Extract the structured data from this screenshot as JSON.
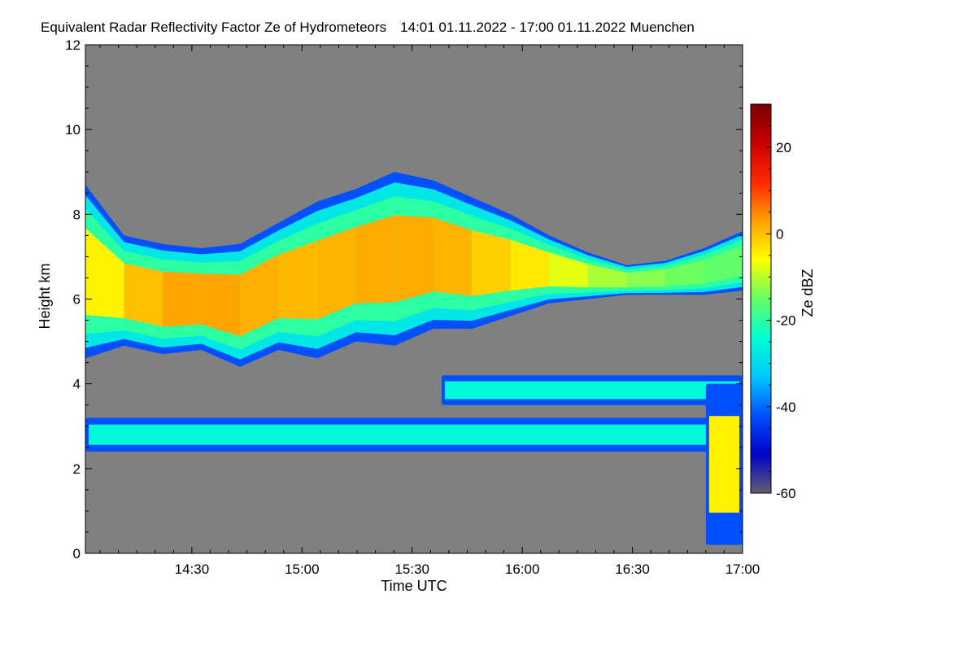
{
  "chart_data": {
    "type": "heatmap",
    "title": "Equivalent Radar Reflectivity Factor Ze of Hydrometeors",
    "time_range_label": "14:01 01.11.2022 - 17:00 01.11.2022",
    "location": "Muenchen",
    "xlabel": "Time UTC",
    "ylabel": "Height km",
    "x_range": [
      "14:01",
      "17:00"
    ],
    "x_ticks": [
      "14:30",
      "15:00",
      "15:30",
      "16:00",
      "16:30",
      "17:00"
    ],
    "ylim": [
      0,
      12
    ],
    "y_ticks": [
      "0",
      "2",
      "4",
      "6",
      "8",
      "10",
      "12"
    ],
    "colorbar": {
      "label": "Ze dBZ",
      "range": [
        -60,
        30
      ],
      "ticks": [
        "20",
        "0",
        "-20",
        "-40",
        "-60"
      ],
      "colors": [
        "#606070",
        "#0000c8",
        "#0050ff",
        "#00c8ff",
        "#00ffd2",
        "#64ff64",
        "#ffff00",
        "#ffa000",
        "#ff2800",
        "#c80000",
        "#7a0000"
      ]
    },
    "background_color": "#808080",
    "layers": [
      {
        "name": "upper-cloud-layer",
        "top_km": [
          8.7,
          7.5,
          7.3,
          7.2,
          7.3,
          7.8,
          8.3,
          8.6,
          9.0,
          8.8,
          8.4,
          8.0,
          7.5,
          7.1,
          6.8,
          6.9,
          7.2,
          7.6
        ],
        "bottom_km": [
          4.6,
          4.9,
          4.7,
          4.8,
          4.4,
          4.8,
          4.6,
          5.0,
          4.9,
          5.3,
          5.3,
          5.6,
          5.9,
          6.0,
          6.1,
          6.1,
          6.1,
          6.2
        ],
        "core_dbz": [
          -8,
          -2,
          2,
          3,
          2,
          1,
          0,
          2,
          2,
          2,
          0,
          -3,
          -5,
          -10,
          -12,
          -14,
          -15,
          -16
        ]
      },
      {
        "name": "mid-cloud-layer",
        "time_range": [
          "15:38",
          "17:00"
        ],
        "top_km": 4.2,
        "bottom_km": 3.5,
        "core_dbz": -25
      },
      {
        "name": "lower-cloud-band",
        "time_range": [
          "14:01",
          "17:00"
        ],
        "top_km": 3.2,
        "bottom_km": 2.4,
        "core_dbz": -25
      },
      {
        "name": "precipitation-shaft",
        "time_range": [
          "16:50",
          "17:00"
        ],
        "top_km": 4.0,
        "bottom_km": 0.2,
        "core_dbz": -5
      }
    ]
  }
}
